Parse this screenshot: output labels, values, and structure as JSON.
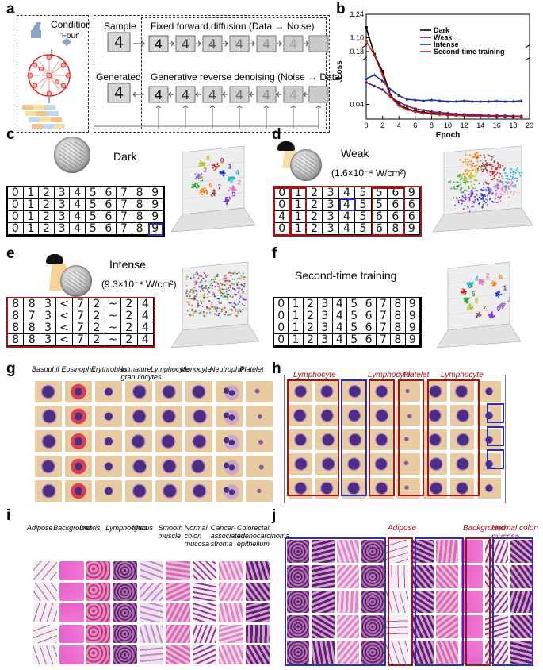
{
  "panels": {
    "a": {
      "label": "a",
      "condition": "Condition",
      "condition_value": "'Four'",
      "sample": "Sample",
      "generated": "Generated",
      "forward": "Fixed forward diffusion (Data → Noise)",
      "reverse": "Generative reverse denoising (Noise → Data)",
      "glyph": "4"
    },
    "b": {
      "label": "b"
    },
    "c": {
      "label": "c",
      "title": "Dark",
      "rows": [
        [
          "0",
          "1",
          "2",
          "3",
          "4",
          "5",
          "6",
          "7",
          "8",
          "9"
        ],
        [
          "0",
          "1",
          "2",
          "3",
          "4",
          "5",
          "6",
          "7",
          "8",
          "9"
        ],
        [
          "0",
          "1",
          "2",
          "3",
          "4",
          "5",
          "6",
          "7",
          "8",
          "9"
        ],
        [
          "0",
          "1",
          "2",
          "3",
          "4",
          "5",
          "6",
          "7",
          "8",
          "9"
        ]
      ]
    },
    "d": {
      "label": "d",
      "title": "Weak",
      "power": "(1.6×10⁻⁴ W/cm²)",
      "rows": [
        [
          "0",
          "1",
          "2",
          "3",
          "4",
          "5",
          "5",
          "6",
          "9"
        ],
        [
          "0",
          "1",
          "2",
          "3",
          "4",
          "5",
          "5",
          "6",
          "6"
        ],
        [
          "4",
          "1",
          "2",
          "3",
          "4",
          "5",
          "6",
          "6",
          "6"
        ],
        [
          "0",
          "1",
          "2",
          "3",
          "4",
          "5",
          "6",
          "8",
          "9"
        ]
      ]
    },
    "e": {
      "label": "e",
      "title": "Intense",
      "power": "(9.3×10⁻⁴ W/cm²)",
      "rows": [
        [
          "8",
          "8",
          "3",
          "<",
          "7",
          "2",
          "~",
          "2",
          "4"
        ],
        [
          "8",
          "7",
          "3",
          "<",
          "7",
          "2",
          "~",
          "2",
          "4"
        ],
        [
          "8",
          "8",
          "3",
          "<",
          "7",
          "2",
          "~",
          "2",
          "4"
        ],
        [
          "8",
          "8",
          "3",
          "<",
          "7",
          "2",
          "~",
          "2",
          "4"
        ]
      ]
    },
    "f": {
      "label": "f",
      "title": "Second-time training",
      "rows": [
        [
          "0",
          "1",
          "2",
          "3",
          "4",
          "5",
          "6",
          "7",
          "8",
          "9"
        ],
        [
          "0",
          "1",
          "2",
          "3",
          "4",
          "5",
          "6",
          "7",
          "8",
          "9"
        ],
        [
          "0",
          "1",
          "2",
          "3",
          "4",
          "5",
          "6",
          "7",
          "8",
          "9"
        ],
        [
          "0",
          "1",
          "2",
          "3",
          "4",
          "5",
          "6",
          "7",
          "8",
          "9"
        ]
      ]
    },
    "g": {
      "label": "g",
      "categories": [
        "Basophil",
        "Eosinophil",
        "Erythroblast",
        "Immature granulocytes",
        "Lymphocyte",
        "Monocyte",
        "Neutrophil",
        "Platelet"
      ]
    },
    "h": {
      "label": "h",
      "red_labels": [
        "Lymphocyte",
        "Lymphocyte",
        "Platelet",
        "Lymphocyte"
      ]
    },
    "i": {
      "label": "i",
      "categories": [
        "Adipose",
        "Background",
        "Debris",
        "Lymphocytes",
        "Mucus",
        "Smooth muscle",
        "Normal colon mucosa",
        "Cancer-associated stroma",
        "Colorectal adenocarcinoma epithelium"
      ]
    },
    "j": {
      "label": "j",
      "red_labels": [
        "Adipose",
        "Background",
        "Normal colon mucosa"
      ]
    }
  },
  "colors": {
    "dark_red": "#a0151a",
    "blue_box": "#2d2db8",
    "cell_bg": "#e8cba0",
    "nucleus": "#4b2d86"
  },
  "clusters": {
    "c": [
      "2",
      "9",
      "7",
      "6",
      "5",
      "3",
      "8",
      "0",
      "1",
      "4"
    ],
    "d": [
      "2",
      "3",
      "1",
      "9",
      "5",
      "8",
      "6",
      "7",
      "0",
      "4"
    ],
    "f": [
      "3",
      "9",
      "7",
      "8",
      "5",
      "0",
      "4",
      "2",
      "6",
      "1"
    ]
  },
  "chart_data": {
    "type": "line",
    "title": "",
    "xlabel": "Epoch",
    "ylabel": "Loss",
    "xlim": [
      0,
      20
    ],
    "xticks": [
      0,
      2,
      4,
      6,
      8,
      10,
      12,
      14,
      16,
      18,
      20
    ],
    "ylim": [
      0.02,
      1.24
    ],
    "yscale": "broken",
    "yticks": [
      0.04,
      0.18,
      1.1,
      1.24
    ],
    "legend_position": "top-right",
    "x": [
      0,
      1,
      2,
      3,
      4,
      5,
      6,
      7,
      8,
      9,
      10,
      11,
      12,
      13,
      14,
      15,
      16,
      17,
      18,
      19
    ],
    "series": [
      {
        "name": "Dark",
        "color": "#000000",
        "marker": "square",
        "values": [
          1.16,
          0.155,
          0.085,
          0.052,
          0.04,
          0.034,
          0.031,
          0.029,
          0.028,
          0.027,
          0.026,
          0.0255,
          0.025,
          0.0245,
          0.024,
          0.0238,
          0.0235,
          0.0233,
          0.0232,
          0.023
        ]
      },
      {
        "name": "Weak",
        "color": "#6a1b6a",
        "marker": "circle",
        "values": [
          0.07,
          0.065,
          0.06,
          0.05,
          0.043,
          0.038,
          0.034,
          0.032,
          0.03,
          0.029,
          0.028,
          0.027,
          0.0265,
          0.026,
          0.0255,
          0.025,
          0.0248,
          0.0245,
          0.0242,
          0.024
        ]
      },
      {
        "name": "Intense",
        "color": "#1f2fa0",
        "marker": "triangle",
        "values": [
          0.075,
          0.08,
          0.072,
          0.06,
          0.052,
          0.047,
          0.046,
          0.045,
          0.046,
          0.045,
          0.044,
          0.044,
          0.045,
          0.044,
          0.044,
          0.044,
          0.0445,
          0.044,
          0.044,
          0.045
        ]
      },
      {
        "name": "Second-time training",
        "color": "#cc1f1f",
        "marker": "cross",
        "values": [
          1.08,
          0.15,
          0.08,
          0.05,
          0.038,
          0.033,
          0.03,
          0.028,
          0.027,
          0.026,
          0.0255,
          0.025,
          0.0245,
          0.024,
          0.0238,
          0.0235,
          0.0232,
          0.023,
          0.0228,
          0.0226
        ]
      }
    ]
  }
}
